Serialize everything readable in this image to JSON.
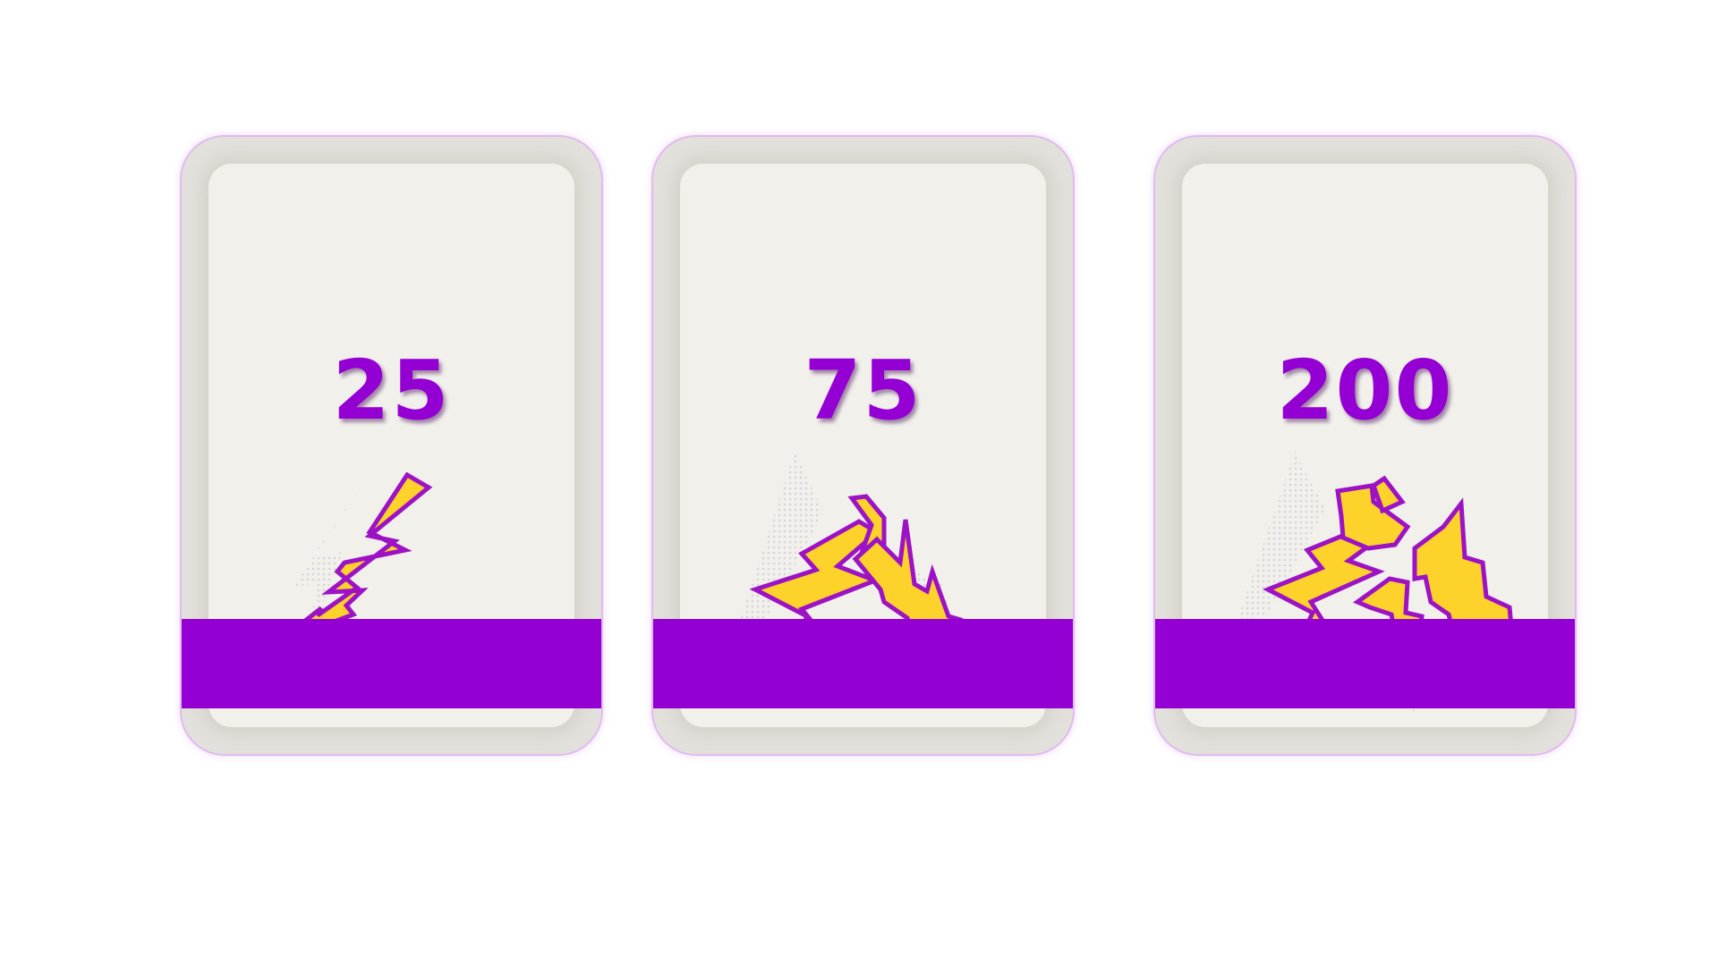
{
  "colors": {
    "accent": "#9400d3",
    "bolt_fill": "#fcd22b",
    "bolt_outline": "#9c12c4",
    "card_frame": "#e3e1dc",
    "card_face": "#f1f0eb"
  },
  "cards": [
    {
      "price": "25",
      "icon": "lightning-bolt-icon",
      "bolt_count": 1
    },
    {
      "price": "75",
      "icon": "lightning-bolts-icon",
      "bolt_count": 2
    },
    {
      "price": "200",
      "icon": "lightning-bolts-icon",
      "bolt_count": 4
    }
  ]
}
